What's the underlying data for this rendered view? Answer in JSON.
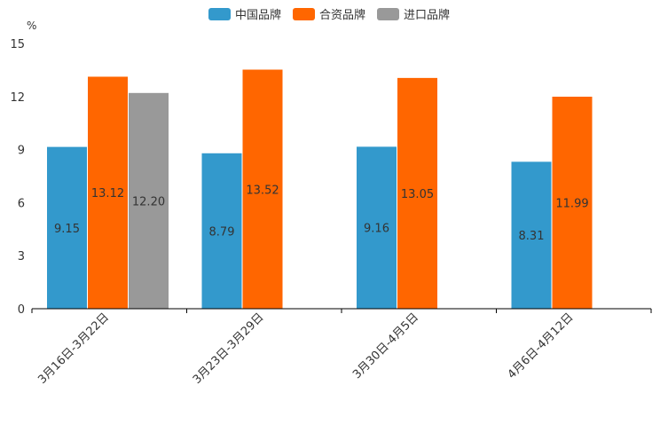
{
  "chart_data": {
    "type": "bar",
    "unit": "%",
    "categories": [
      "3月16日-3月22日",
      "3月23日-3月29日",
      "3月30日-4月5日",
      "4月6日-4月12日"
    ],
    "series": [
      {
        "name": "中国品牌",
        "color": "#3399cc",
        "values": [
          9.15,
          8.79,
          9.16,
          8.31
        ]
      },
      {
        "name": "合资品牌",
        "color": "#ff6600",
        "values": [
          13.12,
          13.52,
          13.05,
          11.99
        ]
      },
      {
        "name": "进口品牌",
        "color": "#999999",
        "values": [
          12.2,
          null,
          null,
          null
        ]
      }
    ],
    "ylim": [
      0,
      15
    ],
    "yticks": [
      0,
      3,
      6,
      9,
      12,
      15
    ],
    "legend_position": "top-center",
    "grid": false
  }
}
